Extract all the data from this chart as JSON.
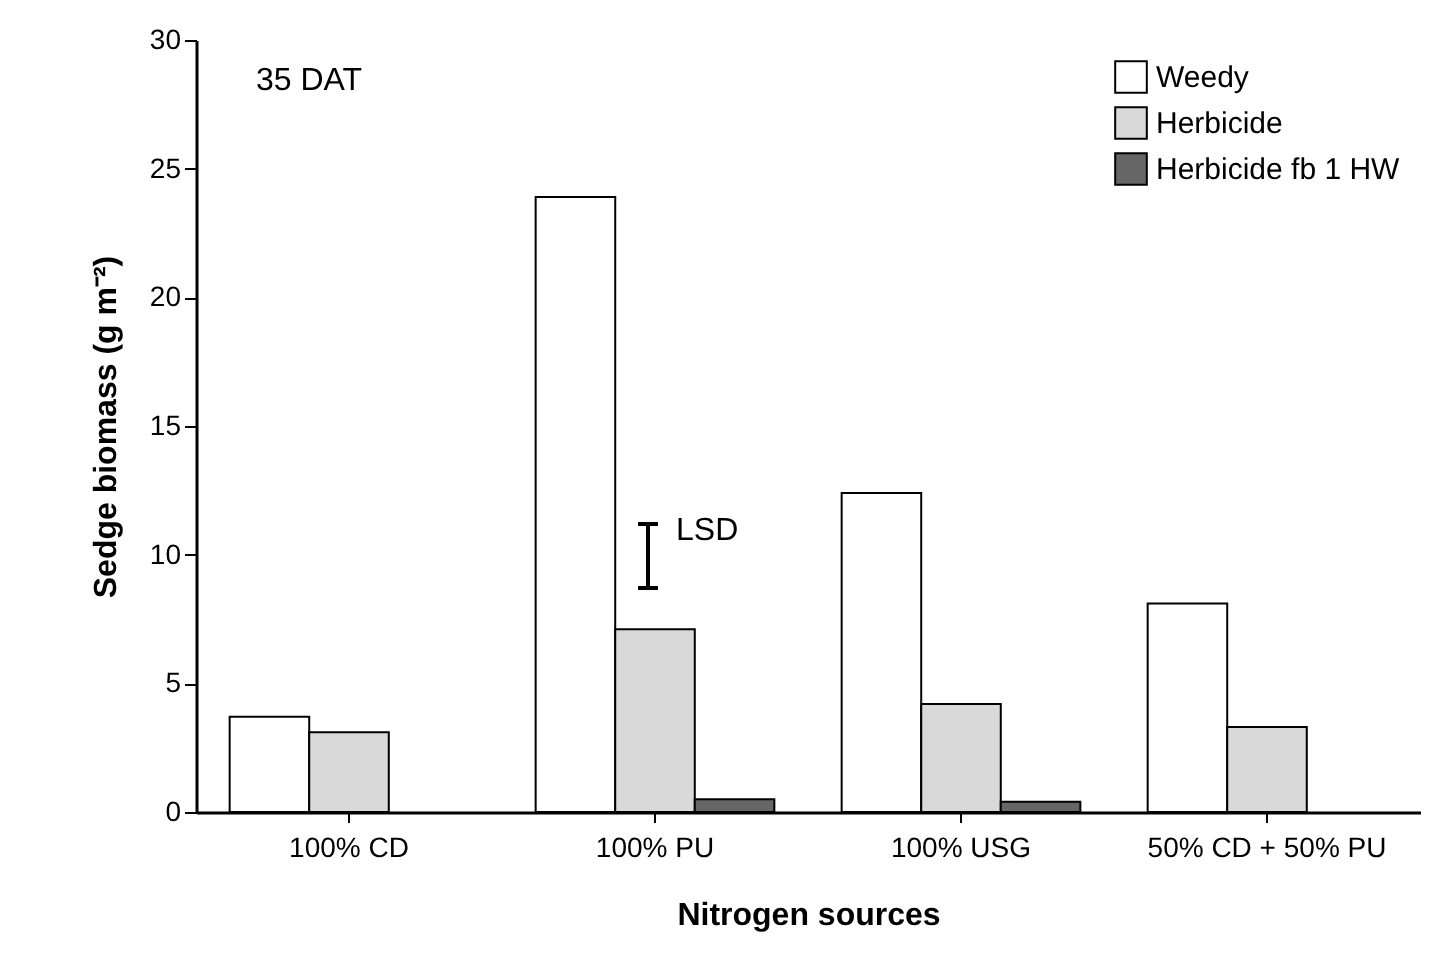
{
  "chart_data": {
    "type": "bar",
    "xlabel": "Nitrogen sources",
    "ylabel": "Sedge biomass (g m⁻²)",
    "categories": [
      "100% CD",
      "100% PU",
      "100% USG",
      "50% CD + 50% PU"
    ],
    "series": [
      {
        "name": "Weedy",
        "color": "#ffffff",
        "values": [
          3.7,
          23.9,
          12.4,
          8.1
        ]
      },
      {
        "name": "Herbicide",
        "color": "#d9d9d9",
        "values": [
          3.1,
          7.1,
          4.2,
          3.3
        ]
      },
      {
        "name": "Herbicide fb 1 HW",
        "color": "#666666",
        "values": [
          null,
          0.5,
          0.4,
          null
        ]
      }
    ],
    "ylim": [
      0,
      30
    ],
    "yticks": [
      0,
      5,
      10,
      15,
      20,
      25,
      30
    ],
    "grid": false,
    "legend": "top right",
    "annotations": [
      "35 DAT",
      "LSD"
    ]
  }
}
